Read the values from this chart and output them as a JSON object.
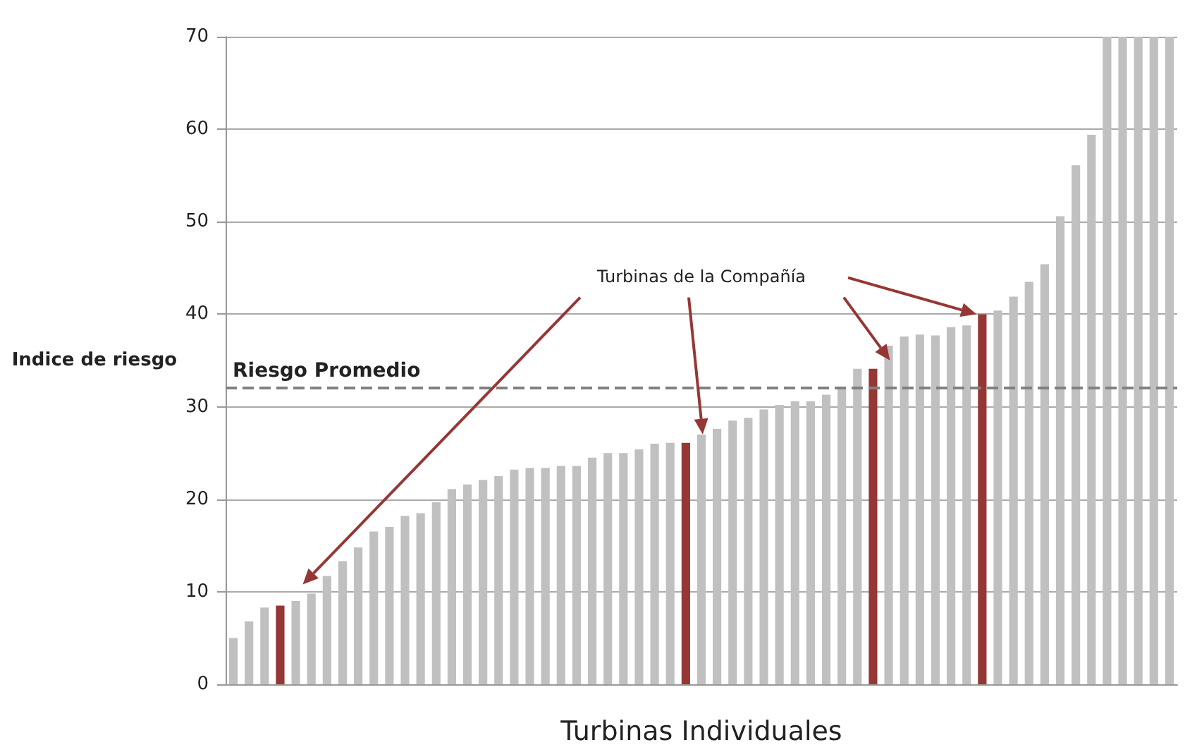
{
  "chart_data": {
    "type": "bar",
    "ylabel": "Indice de riesgo",
    "xlabel": "Turbinas Individuales",
    "categories": [
      null,
      null,
      null,
      null,
      null,
      null,
      null,
      null,
      null,
      null,
      null,
      null,
      null,
      null,
      null,
      null,
      null,
      null,
      null,
      null,
      null,
      null,
      null,
      null,
      null,
      null,
      null,
      null,
      null,
      null,
      null,
      null,
      null,
      null,
      null,
      null,
      null,
      null,
      null,
      null,
      null,
      null,
      null,
      null,
      null,
      null,
      null,
      null,
      null,
      null,
      null,
      null,
      null,
      null,
      null,
      null,
      null,
      null,
      null,
      null,
      null
    ],
    "values": [
      5,
      6.8,
      8.3,
      8.5,
      9,
      9.8,
      11.7,
      13.3,
      14.8,
      16.5,
      17,
      18.2,
      18.5,
      19.7,
      21.1,
      21.6,
      22.1,
      22.5,
      23.2,
      23.4,
      23.4,
      23.6,
      23.6,
      24.5,
      25,
      25,
      25.4,
      26,
      26.1,
      26.1,
      27,
      27.6,
      28.5,
      28.8,
      29.7,
      30.2,
      30.6,
      30.6,
      31.3,
      32.1,
      34.1,
      34.1,
      36.6,
      37.6,
      37.8,
      37.7,
      38.6,
      38.8,
      40,
      40.4,
      41.9,
      43.5,
      45.4,
      50.6,
      56.1,
      59.4,
      70,
      70,
      70,
      70,
      70
    ],
    "colors": [
      "#c0c0c0",
      "#c0c0c0",
      "#c0c0c0",
      "#953735",
      "#c0c0c0",
      "#c0c0c0",
      "#c0c0c0",
      "#c0c0c0",
      "#c0c0c0",
      "#c0c0c0",
      "#c0c0c0",
      "#c0c0c0",
      "#c0c0c0",
      "#c0c0c0",
      "#c0c0c0",
      "#c0c0c0",
      "#c0c0c0",
      "#c0c0c0",
      "#c0c0c0",
      "#c0c0c0",
      "#c0c0c0",
      "#c0c0c0",
      "#c0c0c0",
      "#c0c0c0",
      "#c0c0c0",
      "#c0c0c0",
      "#c0c0c0",
      "#c0c0c0",
      "#c0c0c0",
      "#953735",
      "#c0c0c0",
      "#c0c0c0",
      "#c0c0c0",
      "#c0c0c0",
      "#c0c0c0",
      "#c0c0c0",
      "#c0c0c0",
      "#c0c0c0",
      "#c0c0c0",
      "#c0c0c0",
      "#c0c0c0",
      "#953735",
      "#c0c0c0",
      "#c0c0c0",
      "#c0c0c0",
      "#c0c0c0",
      "#c0c0c0",
      "#c0c0c0",
      "#953735",
      "#c0c0c0",
      "#c0c0c0",
      "#c0c0c0",
      "#c0c0c0",
      "#c0c0c0",
      "#c0c0c0",
      "#c0c0c0",
      "#c0c0c0",
      "#c0c0c0",
      "#c0c0c0",
      "#c0c0c0",
      "#c0c0c0"
    ],
    "ylim": [
      0,
      70
    ],
    "yticks": [
      0,
      10,
      20,
      30,
      40,
      50,
      60,
      70
    ],
    "grid": "y",
    "ref_lines": [
      {
        "axis": "y",
        "value": 32,
        "label": "Riesgo Promedio",
        "color": "#808080",
        "line_style": "dashed"
      }
    ],
    "annotations": [
      "Turbinas de la Compañía"
    ]
  }
}
